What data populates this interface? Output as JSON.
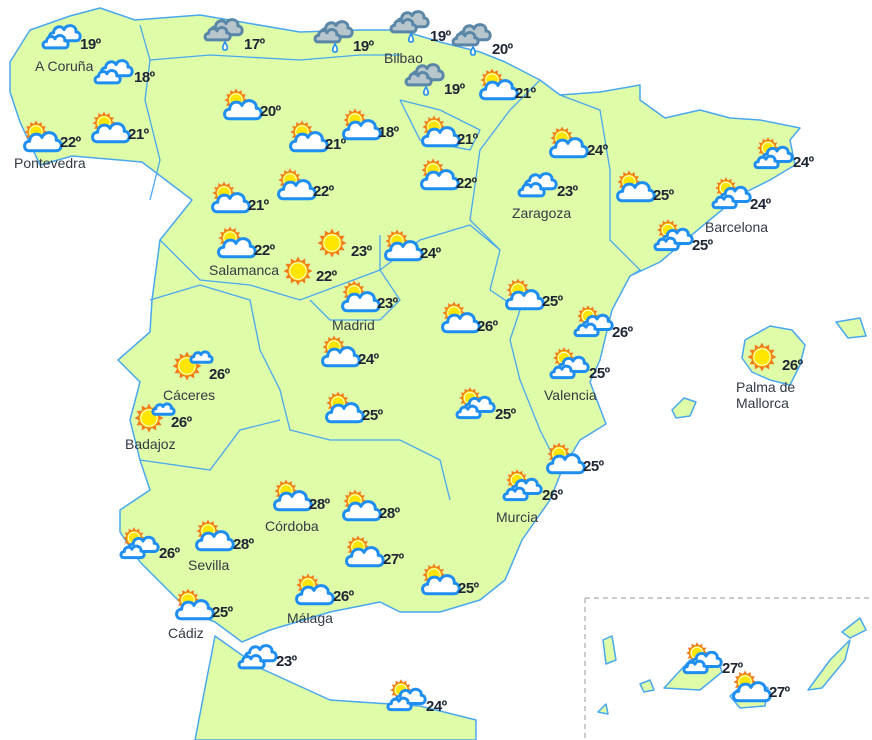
{
  "colors": {
    "land": "#dffca9",
    "border": "#4aa8ee",
    "cloud_stroke": "#1f8ef1",
    "rain_cloud": "#b7c6cc",
    "rain_stroke": "#5a86a8",
    "sun": "#ffe600",
    "sun_rays": "#f27a1a",
    "text": "#1d2433"
  },
  "stations": [
    {
      "icon": "clouds",
      "temp": "19º",
      "label": "A Coruña"
    },
    {
      "icon": "clouds",
      "temp": "18º",
      "label": ""
    },
    {
      "icon": "sun-cloud",
      "temp": "22º",
      "label": "Pontevedra"
    },
    {
      "icon": "sun-cloud",
      "temp": "21º",
      "label": ""
    },
    {
      "icon": "rain",
      "temp": "17º",
      "label": ""
    },
    {
      "icon": "rain",
      "temp": "19º",
      "label": ""
    },
    {
      "icon": "rain",
      "temp": "19º",
      "label": "Bilbao"
    },
    {
      "icon": "rain",
      "temp": "20º",
      "label": ""
    },
    {
      "icon": "rain",
      "temp": "19º",
      "label": ""
    },
    {
      "icon": "sun-cloud",
      "temp": "21º",
      "label": ""
    },
    {
      "icon": "sun-cloud",
      "temp": "20º",
      "label": ""
    },
    {
      "icon": "sun-cloud",
      "temp": "21º",
      "label": ""
    },
    {
      "icon": "sun-cloud",
      "temp": "18º",
      "label": ""
    },
    {
      "icon": "sun-cloud",
      "temp": "21º",
      "label": ""
    },
    {
      "icon": "sun-cloud",
      "temp": "22º",
      "label": ""
    },
    {
      "icon": "sun-cloud",
      "temp": "24º",
      "label": ""
    },
    {
      "icon": "clouds",
      "temp": "23º",
      "label": "Zaragoza"
    },
    {
      "icon": "sun-cloud",
      "temp": "25º",
      "label": ""
    },
    {
      "icon": "sun-clouds",
      "temp": "24º",
      "label": ""
    },
    {
      "icon": "sun-clouds",
      "temp": "24º",
      "label": "Barcelona"
    },
    {
      "icon": "sun-clouds",
      "temp": "25º",
      "label": ""
    },
    {
      "icon": "sun-cloud",
      "temp": "21º",
      "label": ""
    },
    {
      "icon": "sun-cloud",
      "temp": "22º",
      "label": ""
    },
    {
      "icon": "sun-cloud",
      "temp": "22º",
      "label": "Salamanca"
    },
    {
      "icon": "sun",
      "temp": "23º",
      "label": ""
    },
    {
      "icon": "sun",
      "temp": "22º",
      "label": ""
    },
    {
      "icon": "sun-cloud",
      "temp": "24º",
      "label": ""
    },
    {
      "icon": "sun-cloud",
      "temp": "23º",
      "label": "Madrid"
    },
    {
      "icon": "sun-cloud",
      "temp": "25º",
      "label": ""
    },
    {
      "icon": "sun-cloud",
      "temp": "26º",
      "label": ""
    },
    {
      "icon": "sun-clouds",
      "temp": "26º",
      "label": ""
    },
    {
      "icon": "sun-cloud",
      "temp": "24º",
      "label": ""
    },
    {
      "icon": "sun-small-cloud",
      "temp": "26º",
      "label": "Cáceres"
    },
    {
      "icon": "sun-small-cloud",
      "temp": "26º",
      "label": "Badajoz"
    },
    {
      "icon": "sun-clouds",
      "temp": "25º",
      "label": "Valencia"
    },
    {
      "icon": "sun",
      "temp": "26º",
      "label": "Palma de Mallorca"
    },
    {
      "icon": "sun-cloud",
      "temp": "25º",
      "label": ""
    },
    {
      "icon": "sun-clouds",
      "temp": "25º",
      "label": ""
    },
    {
      "icon": "sun-cloud",
      "temp": "25º",
      "label": ""
    },
    {
      "icon": "sun-clouds",
      "temp": "26º",
      "label": "Murcia"
    },
    {
      "icon": "sun-cloud",
      "temp": "28º",
      "label": "Córdoba"
    },
    {
      "icon": "sun-cloud",
      "temp": "28º",
      "label": ""
    },
    {
      "icon": "sun-cloud",
      "temp": "28º",
      "label": "Sevilla"
    },
    {
      "icon": "sun-clouds",
      "temp": "26º",
      "label": ""
    },
    {
      "icon": "sun-cloud",
      "temp": "27º",
      "label": ""
    },
    {
      "icon": "sun-cloud",
      "temp": "25º",
      "label": ""
    },
    {
      "icon": "sun-cloud",
      "temp": "26º",
      "label": "Málaga"
    },
    {
      "icon": "sun-cloud",
      "temp": "25º",
      "label": "Cádiz"
    },
    {
      "icon": "clouds",
      "temp": "23º",
      "label": ""
    },
    {
      "icon": "sun-clouds",
      "temp": "24º",
      "label": ""
    },
    {
      "icon": "sun-clouds",
      "temp": "27º",
      "label": ""
    },
    {
      "icon": "sun-cloud",
      "temp": "27º",
      "label": ""
    }
  ]
}
